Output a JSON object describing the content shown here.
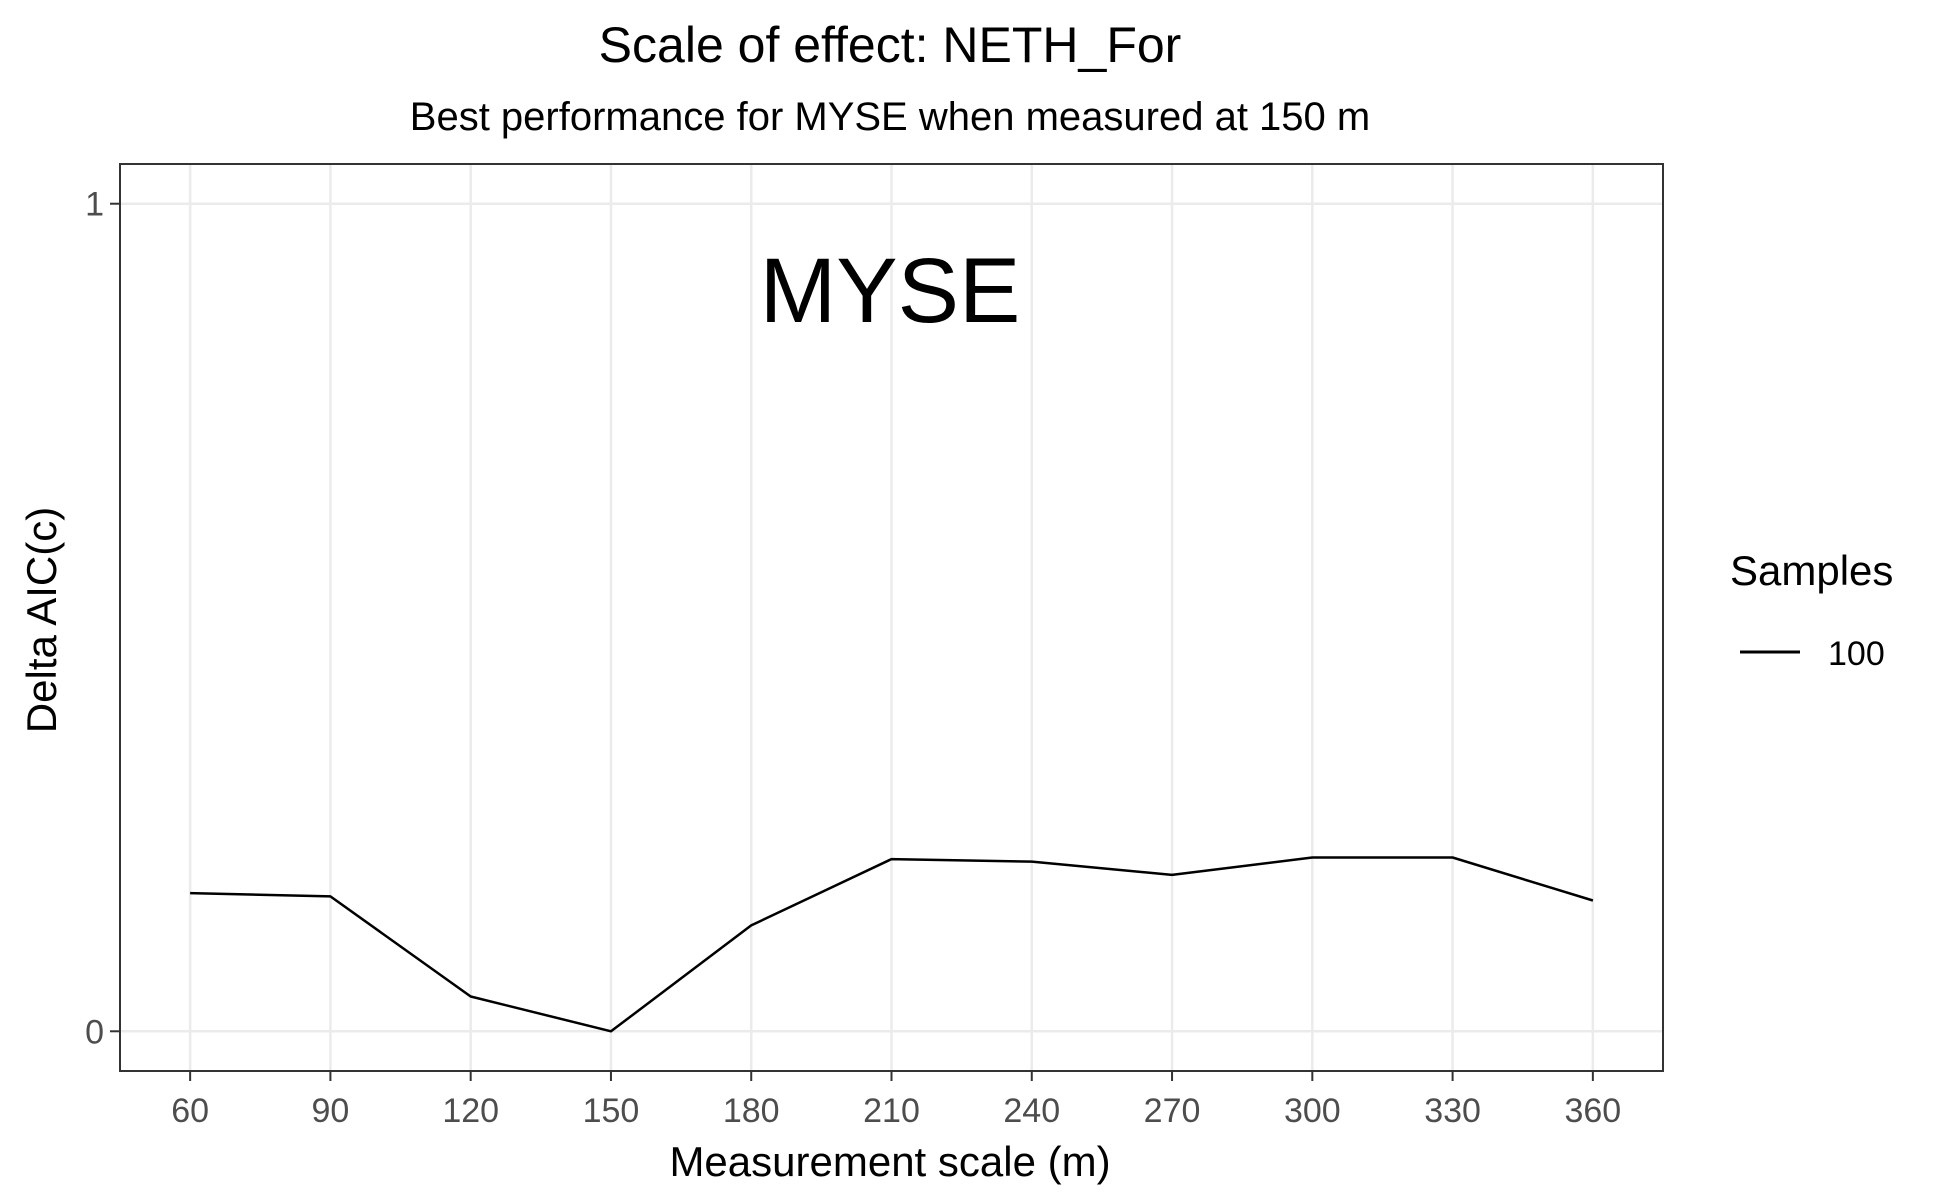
{
  "chart_data": {
    "type": "line",
    "title": "Scale of effect: NETH_For",
    "subtitle": "Best performance for MYSE when measured at 150 m",
    "annotation": "MYSE",
    "xlabel": "Measurement scale (m)",
    "ylabel": "Delta AIC(c)",
    "x": [
      60,
      90,
      120,
      150,
      180,
      210,
      240,
      270,
      300,
      330,
      360
    ],
    "series": [
      {
        "name": "100",
        "values": [
          0.167,
          0.163,
          0.042,
          0.0,
          0.128,
          0.208,
          0.205,
          0.189,
          0.21,
          0.21,
          0.158
        ]
      }
    ],
    "xlim": [
      45,
      375
    ],
    "ylim": [
      -0.048,
      1.048
    ],
    "x_ticks": [
      "60",
      "90",
      "120",
      "150",
      "180",
      "210",
      "240",
      "270",
      "300",
      "330",
      "360"
    ],
    "y_ticks": [
      "0",
      "1"
    ],
    "grid": true,
    "legend": {
      "title": "Samples",
      "placement": "right",
      "entries": [
        "100"
      ]
    },
    "colors": {
      "line": "#000000",
      "grid": "#ebebeb",
      "panel_border": "#333333",
      "tick_text": "#4d4d4d"
    }
  }
}
